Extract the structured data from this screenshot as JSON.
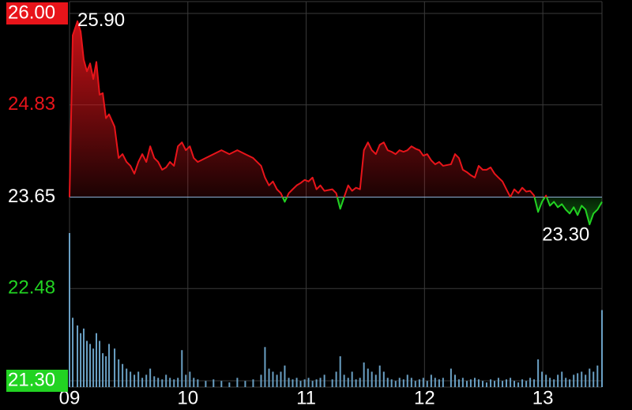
{
  "chart_data": {
    "type": "line",
    "baseline": 23.65,
    "up_color": "#e8141a",
    "down_color": "#22d322",
    "baseline_color": "#8fb0d8",
    "grid_color": "#3a3a3a",
    "grid": true,
    "xlim": [
      9,
      13.5
    ],
    "xticks": [
      {
        "value": 9,
        "label": "09"
      },
      10,
      11,
      12,
      13
    ],
    "ylim": [
      21.3,
      26
    ],
    "yticks": [
      {
        "value": 26,
        "label": "26.00"
      },
      {
        "value": 24.83,
        "label": "24.83"
      },
      {
        "value": 23.65,
        "label": "23.65"
      },
      {
        "value": 22.48,
        "label": "22.48"
      },
      {
        "value": 21.3,
        "label": "21.30"
      }
    ],
    "x": [
      9.0,
      9.027,
      9.067,
      9.094,
      9.12,
      9.147,
      9.174,
      9.201,
      9.227,
      9.254,
      9.281,
      9.308,
      9.334,
      9.381,
      9.415,
      9.448,
      9.482,
      9.515,
      9.548,
      9.582,
      9.615,
      9.649,
      9.682,
      9.716,
      9.749,
      9.783,
      9.816,
      9.849,
      9.883,
      9.916,
      9.95,
      9.983,
      10.017,
      10.05,
      10.084,
      10.151,
      10.217,
      10.284,
      10.351,
      10.418,
      10.485,
      10.552,
      10.619,
      10.652,
      10.686,
      10.719,
      10.753,
      10.786,
      10.819,
      10.853,
      10.886,
      10.92,
      10.953,
      10.987,
      11.02,
      11.054,
      11.087,
      11.12,
      11.154,
      11.221,
      11.254,
      11.288,
      11.321,
      11.355,
      11.388,
      11.421,
      11.455,
      11.488,
      11.522,
      11.555,
      11.589,
      11.622,
      11.656,
      11.689,
      11.722,
      11.756,
      11.789,
      11.823,
      11.856,
      11.89,
      11.923,
      11.957,
      11.99,
      12.023,
      12.057,
      12.09,
      12.124,
      12.157,
      12.224,
      12.258,
      12.291,
      12.324,
      12.358,
      12.391,
      12.425,
      12.458,
      12.492,
      12.525,
      12.559,
      12.592,
      12.625,
      12.659,
      12.692,
      12.726,
      12.759,
      12.793,
      12.826,
      12.86,
      12.893,
      12.926,
      12.96,
      12.993,
      13.027,
      13.06,
      13.094,
      13.127,
      13.161,
      13.194,
      13.227,
      13.261,
      13.294,
      13.328,
      13.361,
      13.395,
      13.428,
      13.462,
      13.5
    ],
    "values": [
      23.65,
      25.72,
      25.9,
      25.77,
      25.41,
      25.26,
      25.36,
      25.16,
      25.38,
      24.96,
      24.98,
      24.66,
      24.71,
      24.55,
      24.15,
      24.2,
      24.1,
      24.05,
      23.95,
      24.1,
      24.2,
      24.1,
      24.3,
      24.15,
      24.1,
      24.0,
      24.03,
      24.1,
      24.05,
      24.3,
      24.35,
      24.25,
      24.3,
      24.15,
      24.1,
      24.15,
      24.2,
      24.25,
      24.2,
      24.25,
      24.2,
      24.15,
      24.05,
      23.9,
      23.8,
      23.85,
      23.75,
      23.7,
      23.59,
      23.7,
      23.75,
      23.8,
      23.83,
      23.87,
      23.85,
      23.9,
      23.75,
      23.8,
      23.73,
      23.75,
      23.7,
      23.5,
      23.65,
      23.8,
      23.73,
      23.77,
      23.75,
      24.25,
      24.35,
      24.25,
      24.2,
      24.32,
      24.35,
      24.25,
      24.23,
      24.2,
      24.25,
      24.23,
      24.25,
      24.3,
      24.27,
      24.25,
      24.18,
      24.2,
      24.12,
      24.07,
      24.1,
      24.05,
      24.07,
      24.2,
      24.15,
      24.0,
      23.97,
      23.93,
      23.9,
      24.05,
      24.0,
      24.0,
      24.03,
      23.95,
      23.9,
      23.85,
      23.75,
      23.65,
      23.75,
      23.7,
      23.77,
      23.72,
      23.73,
      23.67,
      23.46,
      23.59,
      23.67,
      23.54,
      23.59,
      23.52,
      23.56,
      23.49,
      23.44,
      23.52,
      23.42,
      23.54,
      23.49,
      23.3,
      23.44,
      23.49,
      23.59
    ],
    "volume": {
      "color": "#6aa0c4",
      "ylim": [
        0,
        100
      ],
      "values": [
        100,
        45,
        40,
        35,
        38,
        30,
        28,
        25,
        35,
        30,
        22,
        20,
        28,
        25,
        18,
        15,
        12,
        10,
        8,
        10,
        6,
        8,
        12,
        7,
        6,
        5,
        8,
        6,
        5,
        6,
        24,
        8,
        10,
        6,
        5,
        4,
        5,
        4,
        3,
        6,
        4,
        5,
        8,
        26,
        12,
        10,
        8,
        10,
        14,
        6,
        5,
        6,
        4,
        5,
        6,
        4,
        5,
        6,
        8,
        5,
        10,
        20,
        8,
        6,
        10,
        5,
        6,
        16,
        12,
        10,
        8,
        14,
        10,
        6,
        5,
        4,
        6,
        5,
        8,
        6,
        4,
        5,
        6,
        4,
        8,
        6,
        5,
        6,
        12,
        8,
        5,
        6,
        4,
        5,
        6,
        5,
        4,
        3,
        5,
        4,
        6,
        4,
        5,
        6,
        4,
        3,
        5,
        4,
        6,
        5,
        18,
        10,
        8,
        6,
        5,
        8,
        10,
        6,
        5,
        8,
        9,
        10,
        8,
        12,
        10,
        14,
        50
      ]
    },
    "annotations": [
      {
        "x": 9.067,
        "y": 25.9,
        "text": "25.90"
      },
      {
        "x": 13.395,
        "y": 23.3,
        "text": "23.30"
      }
    ]
  }
}
